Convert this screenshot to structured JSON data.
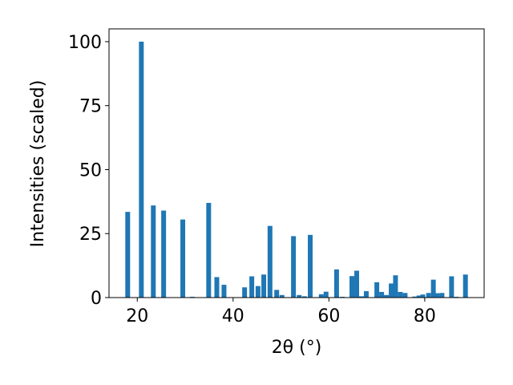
{
  "chart_data": {
    "type": "bar",
    "xlabel": "2θ (°)",
    "ylabel": "Intensities (scaled)",
    "color": "#1f77b4",
    "x": [
      18.0,
      20.85,
      23.35,
      25.5,
      29.5,
      31.5,
      34.9,
      36.6,
      38.1,
      42.4,
      43.9,
      45.2,
      46.4,
      47.7,
      49.1,
      50.2,
      52.6,
      53.8,
      54.9,
      56.1,
      58.4,
      59.4,
      61.6,
      62.8,
      64.8,
      65.8,
      66.8,
      67.8,
      70.0,
      71.0,
      72.0,
      73.0,
      73.9,
      74.9,
      75.9,
      77.9,
      78.8,
      79.6,
      80.8,
      81.8,
      82.6,
      83.6,
      85.6,
      86.6,
      88.5
    ],
    "values": [
      33.5,
      100,
      36,
      34,
      30.5,
      0.3,
      37,
      8,
      5,
      4,
      8.3,
      4.5,
      9,
      28,
      3,
      1,
      24,
      1,
      0.5,
      24.5,
      1.3,
      2.3,
      11,
      0.3,
      8.4,
      10.5,
      0.5,
      2.5,
      6,
      2.2,
      1,
      5.5,
      8.7,
      2.2,
      1.8,
      0.4,
      0.8,
      1.2,
      1.8,
      7,
      1.7,
      1.8,
      8.3,
      0.3,
      9
    ],
    "xlim": [
      14.1,
      92.4
    ],
    "ylim": [
      0,
      105
    ],
    "xticks": [
      20,
      40,
      60,
      80
    ],
    "yticks": [
      0,
      25,
      50,
      75,
      100
    ]
  }
}
